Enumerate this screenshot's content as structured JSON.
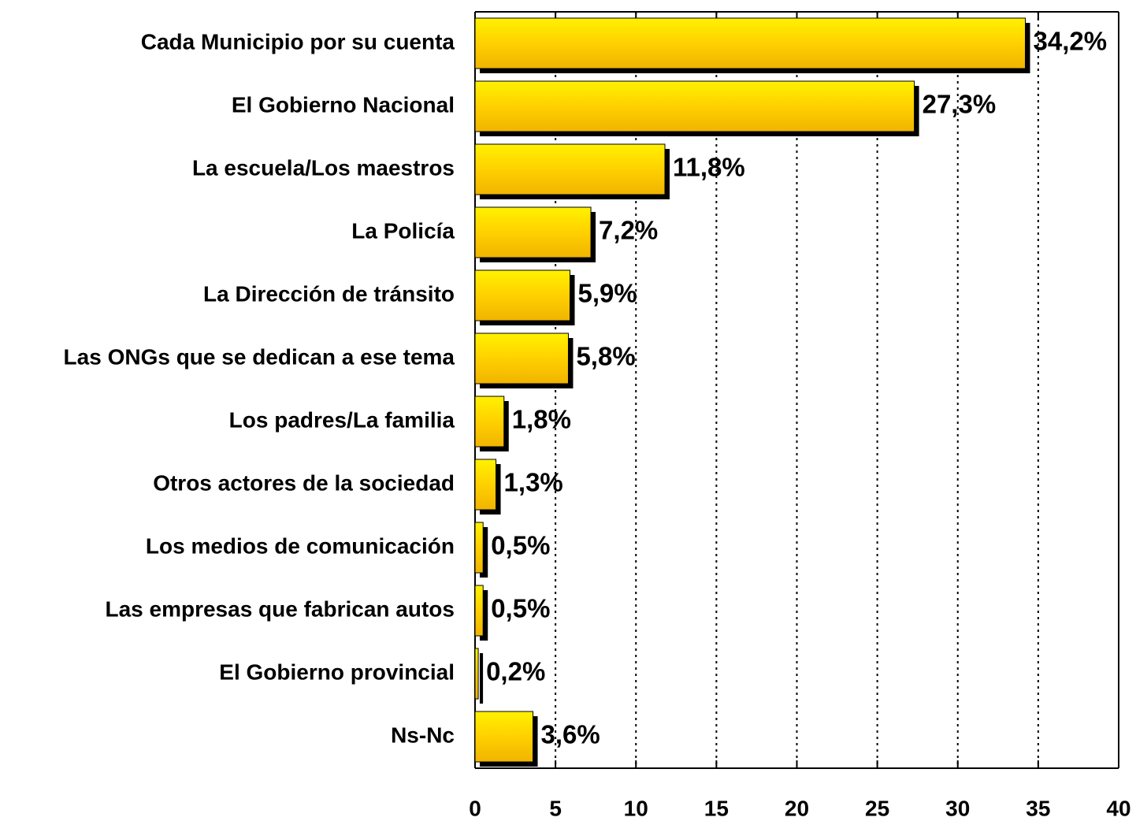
{
  "chart_data": {
    "type": "bar",
    "orientation": "horizontal",
    "categories": [
      "Cada Municipio por su cuenta",
      "El Gobierno Nacional",
      "La escuela/Los maestros",
      "La Policía",
      "La Dirección de tránsito",
      "Las ONGs que se dedican a ese tema",
      "Los padres/La familia",
      "Otros actores de la sociedad",
      "Los medios de comunicación",
      "Las empresas que fabrican autos",
      "El Gobierno provincial",
      "Ns-Nc"
    ],
    "values": [
      34.2,
      27.3,
      11.8,
      7.2,
      5.9,
      5.8,
      1.8,
      1.3,
      0.5,
      0.5,
      0.2,
      3.6
    ],
    "value_labels": [
      "34,2%",
      "27,3%",
      "11,8%",
      "7,2%",
      "5,9%",
      "5,8%",
      "1,8%",
      "1,3%",
      "0,5%",
      "0,5%",
      "0,2%",
      "3,6%"
    ],
    "color": "#ffd700",
    "xlim": [
      0,
      40
    ],
    "xticks": [
      0,
      5,
      10,
      15,
      20,
      25,
      30,
      35,
      40
    ],
    "grid": true
  }
}
